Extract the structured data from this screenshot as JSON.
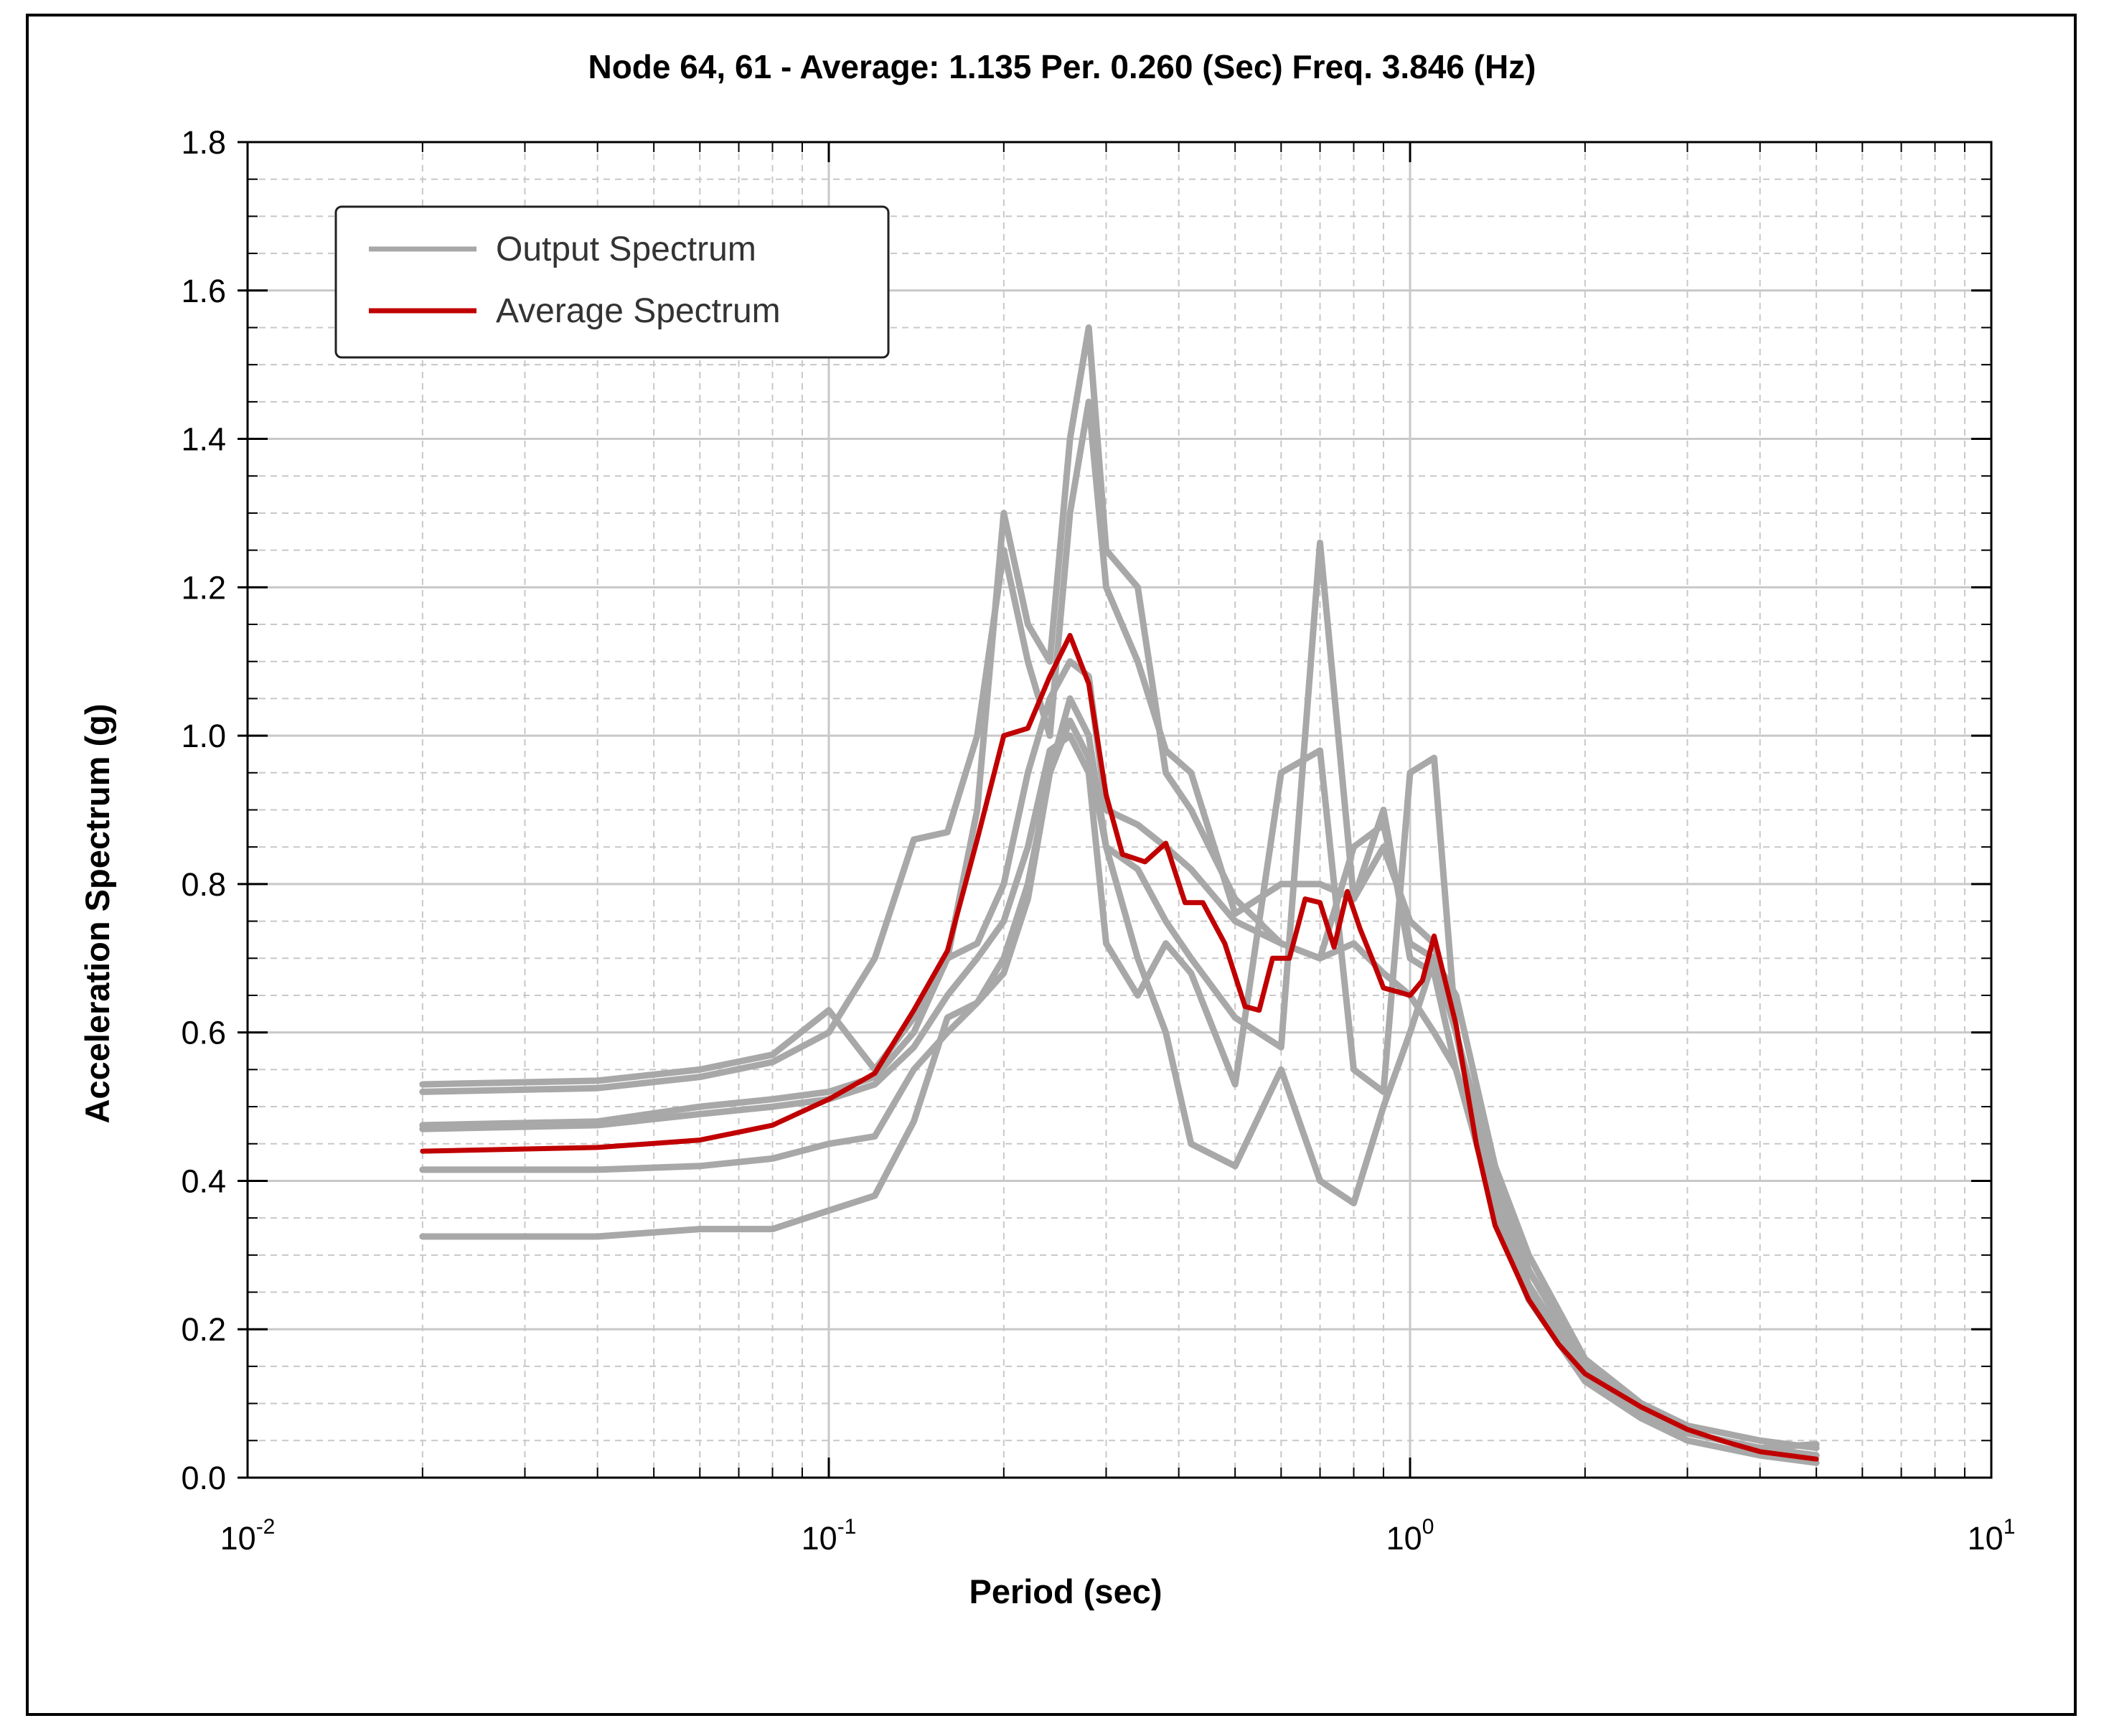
{
  "chart_data": {
    "type": "line",
    "title": "Node 64, 61 - Average: 1.135 Per. 0.260 (Sec) Freq. 3.846 (Hz)",
    "xlabel": "Period (sec)",
    "ylabel": "Acceleration Spectrum (g)",
    "x_scale": "log",
    "xlim": [
      0.01,
      10
    ],
    "ylim": [
      0,
      1.8
    ],
    "grid": true,
    "x_ticks": [
      {
        "base": "10",
        "exp": "-2",
        "value": 0.01
      },
      {
        "base": "10",
        "exp": "-1",
        "value": 0.1
      },
      {
        "base": "10",
        "exp": "0",
        "value": 1
      },
      {
        "base": "10",
        "exp": "1",
        "value": 10
      }
    ],
    "y_ticks": [
      "0.0",
      "0.2",
      "0.4",
      "0.6",
      "0.8",
      "1.0",
      "1.2",
      "1.4",
      "1.6",
      "1.8"
    ],
    "legend": {
      "position": "top-left",
      "entries": [
        {
          "label": "Output Spectrum",
          "color": "#a8a8a8"
        },
        {
          "label": "Average Spectrum",
          "color": "#c00000"
        }
      ]
    },
    "series": [
      {
        "name": "Output Spectrum",
        "color": "#a8a8a8",
        "x": [
          0.02,
          0.04,
          0.06,
          0.08,
          0.1,
          0.12,
          0.14,
          0.16,
          0.18,
          0.2,
          0.22,
          0.24,
          0.26,
          0.28,
          0.3,
          0.34,
          0.38,
          0.42,
          0.5,
          0.6,
          0.7,
          0.8,
          0.9,
          1.0,
          1.1,
          1.2,
          1.4,
          1.6,
          2.0,
          2.5,
          3.0,
          4.0,
          5.0
        ],
        "y": [
          0.53,
          0.535,
          0.55,
          0.57,
          0.63,
          0.55,
          0.62,
          0.7,
          0.9,
          1.3,
          1.15,
          1.1,
          1.4,
          1.55,
          1.25,
          1.2,
          0.95,
          0.9,
          0.78,
          0.72,
          0.7,
          0.85,
          0.88,
          0.72,
          0.7,
          0.6,
          0.38,
          0.28,
          0.15,
          0.09,
          0.06,
          0.04,
          0.045
        ]
      },
      {
        "name": "Output Spectrum",
        "color": "#a8a8a8",
        "x": [
          0.02,
          0.04,
          0.06,
          0.08,
          0.1,
          0.12,
          0.14,
          0.16,
          0.18,
          0.2,
          0.22,
          0.24,
          0.26,
          0.28,
          0.3,
          0.34,
          0.38,
          0.42,
          0.5,
          0.6,
          0.7,
          0.8,
          0.9,
          1.0,
          1.1,
          1.2,
          1.4,
          1.6,
          2.0,
          2.5,
          3.0,
          4.0,
          5.0
        ],
        "y": [
          0.52,
          0.525,
          0.54,
          0.56,
          0.6,
          0.7,
          0.86,
          0.87,
          1.0,
          1.25,
          1.1,
          1.0,
          1.3,
          1.45,
          1.2,
          1.1,
          0.98,
          0.95,
          0.76,
          0.8,
          0.8,
          0.78,
          0.9,
          0.7,
          0.68,
          0.55,
          0.36,
          0.25,
          0.13,
          0.08,
          0.06,
          0.04,
          0.03
        ]
      },
      {
        "name": "Output Spectrum",
        "color": "#a8a8a8",
        "x": [
          0.02,
          0.04,
          0.06,
          0.08,
          0.1,
          0.12,
          0.14,
          0.16,
          0.18,
          0.2,
          0.22,
          0.24,
          0.26,
          0.28,
          0.3,
          0.34,
          0.38,
          0.42,
          0.5,
          0.6,
          0.7,
          0.8,
          0.9,
          1.0,
          1.1,
          1.2,
          1.4,
          1.6,
          2.0,
          2.5,
          3.0,
          4.0,
          5.0
        ],
        "y": [
          0.475,
          0.48,
          0.5,
          0.51,
          0.52,
          0.54,
          0.6,
          0.7,
          0.72,
          0.8,
          0.95,
          1.05,
          1.1,
          1.08,
          0.9,
          0.88,
          0.85,
          0.82,
          0.75,
          0.72,
          0.7,
          0.72,
          0.68,
          0.65,
          0.6,
          0.55,
          0.38,
          0.26,
          0.14,
          0.09,
          0.06,
          0.04,
          0.03
        ]
      },
      {
        "name": "Output Spectrum",
        "color": "#a8a8a8",
        "x": [
          0.02,
          0.04,
          0.06,
          0.08,
          0.1,
          0.12,
          0.14,
          0.16,
          0.18,
          0.2,
          0.22,
          0.24,
          0.26,
          0.28,
          0.3,
          0.34,
          0.38,
          0.42,
          0.5,
          0.6,
          0.7,
          0.8,
          0.9,
          1.0,
          1.1,
          1.2,
          1.4,
          1.6,
          2.0,
          2.5,
          3.0,
          4.0,
          5.0
        ],
        "y": [
          0.47,
          0.475,
          0.49,
          0.5,
          0.51,
          0.53,
          0.58,
          0.65,
          0.7,
          0.75,
          0.85,
          0.98,
          1.0,
          0.95,
          0.72,
          0.65,
          0.72,
          0.68,
          0.53,
          0.95,
          0.98,
          0.55,
          0.52,
          0.95,
          0.97,
          0.6,
          0.35,
          0.24,
          0.13,
          0.08,
          0.05,
          0.03,
          0.02
        ]
      },
      {
        "name": "Output Spectrum",
        "color": "#a8a8a8",
        "x": [
          0.02,
          0.04,
          0.06,
          0.08,
          0.1,
          0.12,
          0.14,
          0.16,
          0.18,
          0.2,
          0.22,
          0.24,
          0.26,
          0.28,
          0.3,
          0.34,
          0.38,
          0.42,
          0.5,
          0.6,
          0.7,
          0.8,
          0.9,
          1.0,
          1.1,
          1.2,
          1.4,
          1.6,
          2.0,
          2.5,
          3.0,
          4.0,
          5.0
        ],
        "y": [
          0.415,
          0.415,
          0.42,
          0.43,
          0.45,
          0.46,
          0.55,
          0.6,
          0.64,
          0.7,
          0.8,
          0.95,
          1.05,
          1.0,
          0.85,
          0.7,
          0.6,
          0.45,
          0.42,
          0.55,
          0.4,
          0.37,
          0.5,
          0.6,
          0.7,
          0.65,
          0.42,
          0.3,
          0.16,
          0.1,
          0.07,
          0.05,
          0.04
        ]
      },
      {
        "name": "Output Spectrum",
        "color": "#a8a8a8",
        "x": [
          0.02,
          0.04,
          0.06,
          0.08,
          0.1,
          0.12,
          0.14,
          0.16,
          0.18,
          0.2,
          0.22,
          0.24,
          0.26,
          0.28,
          0.3,
          0.34,
          0.38,
          0.42,
          0.5,
          0.6,
          0.7,
          0.8,
          0.9,
          1.0,
          1.1,
          1.2,
          1.4,
          1.6,
          2.0,
          2.5,
          3.0,
          4.0,
          5.0
        ],
        "y": [
          0.325,
          0.325,
          0.335,
          0.335,
          0.36,
          0.38,
          0.48,
          0.62,
          0.64,
          0.68,
          0.78,
          0.95,
          1.02,
          0.97,
          0.85,
          0.82,
          0.75,
          0.7,
          0.62,
          0.58,
          1.26,
          0.78,
          0.85,
          0.75,
          0.72,
          0.6,
          0.4,
          0.28,
          0.15,
          0.09,
          0.06,
          0.04,
          0.03
        ]
      },
      {
        "name": "Average Spectrum",
        "color": "#c00000",
        "x": [
          0.02,
          0.04,
          0.06,
          0.08,
          0.1,
          0.12,
          0.14,
          0.16,
          0.18,
          0.2,
          0.22,
          0.24,
          0.26,
          0.28,
          0.3,
          0.32,
          0.35,
          0.38,
          0.41,
          0.44,
          0.48,
          0.52,
          0.55,
          0.58,
          0.62,
          0.66,
          0.7,
          0.74,
          0.78,
          0.82,
          0.86,
          0.9,
          0.95,
          1.0,
          1.05,
          1.1,
          1.2,
          1.3,
          1.4,
          1.6,
          1.8,
          2.0,
          2.5,
          3.0,
          3.5,
          4.0,
          5.0
        ],
        "y": [
          0.44,
          0.445,
          0.455,
          0.475,
          0.51,
          0.545,
          0.63,
          0.71,
          0.86,
          1.0,
          1.01,
          1.08,
          1.135,
          1.07,
          0.92,
          0.84,
          0.83,
          0.855,
          0.775,
          0.775,
          0.72,
          0.635,
          0.63,
          0.7,
          0.7,
          0.78,
          0.775,
          0.715,
          0.79,
          0.74,
          0.7,
          0.66,
          0.655,
          0.65,
          0.67,
          0.73,
          0.61,
          0.45,
          0.34,
          0.24,
          0.18,
          0.14,
          0.095,
          0.065,
          0.048,
          0.035,
          0.025
        ]
      }
    ]
  }
}
